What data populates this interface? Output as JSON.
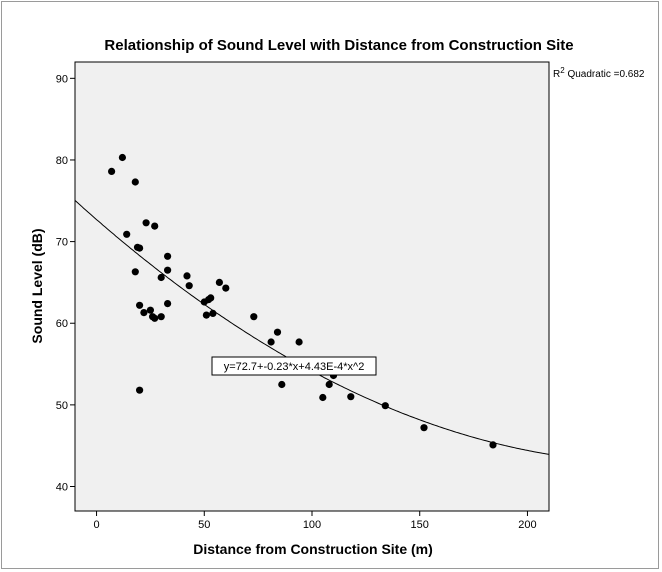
{
  "chart_data": {
    "type": "scatter",
    "title": "Relationship of Sound Level with Distance from Construction Site",
    "xlabel": "Distance from Construction Site (m)",
    "ylabel": "Sound Level (dB)",
    "xlim": [
      -10,
      210
    ],
    "ylim": [
      37,
      92
    ],
    "xticks": [
      0,
      50,
      100,
      150,
      200
    ],
    "yticks": [
      40,
      50,
      60,
      70,
      80,
      90
    ],
    "grid": false,
    "plot_background": "#f0f0f0",
    "points": [
      [
        7,
        78.6
      ],
      [
        12,
        80.3
      ],
      [
        14,
        70.9
      ],
      [
        18,
        66.3
      ],
      [
        18,
        77.3
      ],
      [
        19,
        69.3
      ],
      [
        20,
        69.2
      ],
      [
        20,
        62.2
      ],
      [
        20,
        51.8
      ],
      [
        22,
        61.3
      ],
      [
        23,
        72.3
      ],
      [
        25,
        61.6
      ],
      [
        26,
        60.8
      ],
      [
        27,
        71.9
      ],
      [
        27,
        60.6
      ],
      [
        30,
        65.6
      ],
      [
        30,
        60.8
      ],
      [
        33,
        68.2
      ],
      [
        33,
        66.5
      ],
      [
        33,
        62.4
      ],
      [
        42,
        65.8
      ],
      [
        43,
        64.6
      ],
      [
        50,
        62.6
      ],
      [
        51,
        61
      ],
      [
        52,
        62.9
      ],
      [
        53,
        63.1
      ],
      [
        54,
        61.2
      ],
      [
        57,
        65
      ],
      [
        60,
        64.3
      ],
      [
        73,
        60.8
      ],
      [
        81,
        57.7
      ],
      [
        84,
        58.9
      ],
      [
        86,
        52.5
      ],
      [
        94,
        57.7
      ],
      [
        105,
        50.9
      ],
      [
        108,
        52.5
      ],
      [
        110,
        53.6
      ],
      [
        118,
        51
      ],
      [
        134,
        49.9
      ],
      [
        152,
        47.2
      ],
      [
        184,
        45.1
      ]
    ],
    "fit": {
      "type": "quadratic",
      "coefficients": [
        72.7,
        -0.23,
        0.000443
      ],
      "equation_label": "y=72.7+-0.23*x+4.43E-4*x^2",
      "r2_label_prefix": "R",
      "r2_label_sup": "2",
      "r2_label_suffix": " Quadratic =0.682"
    }
  }
}
